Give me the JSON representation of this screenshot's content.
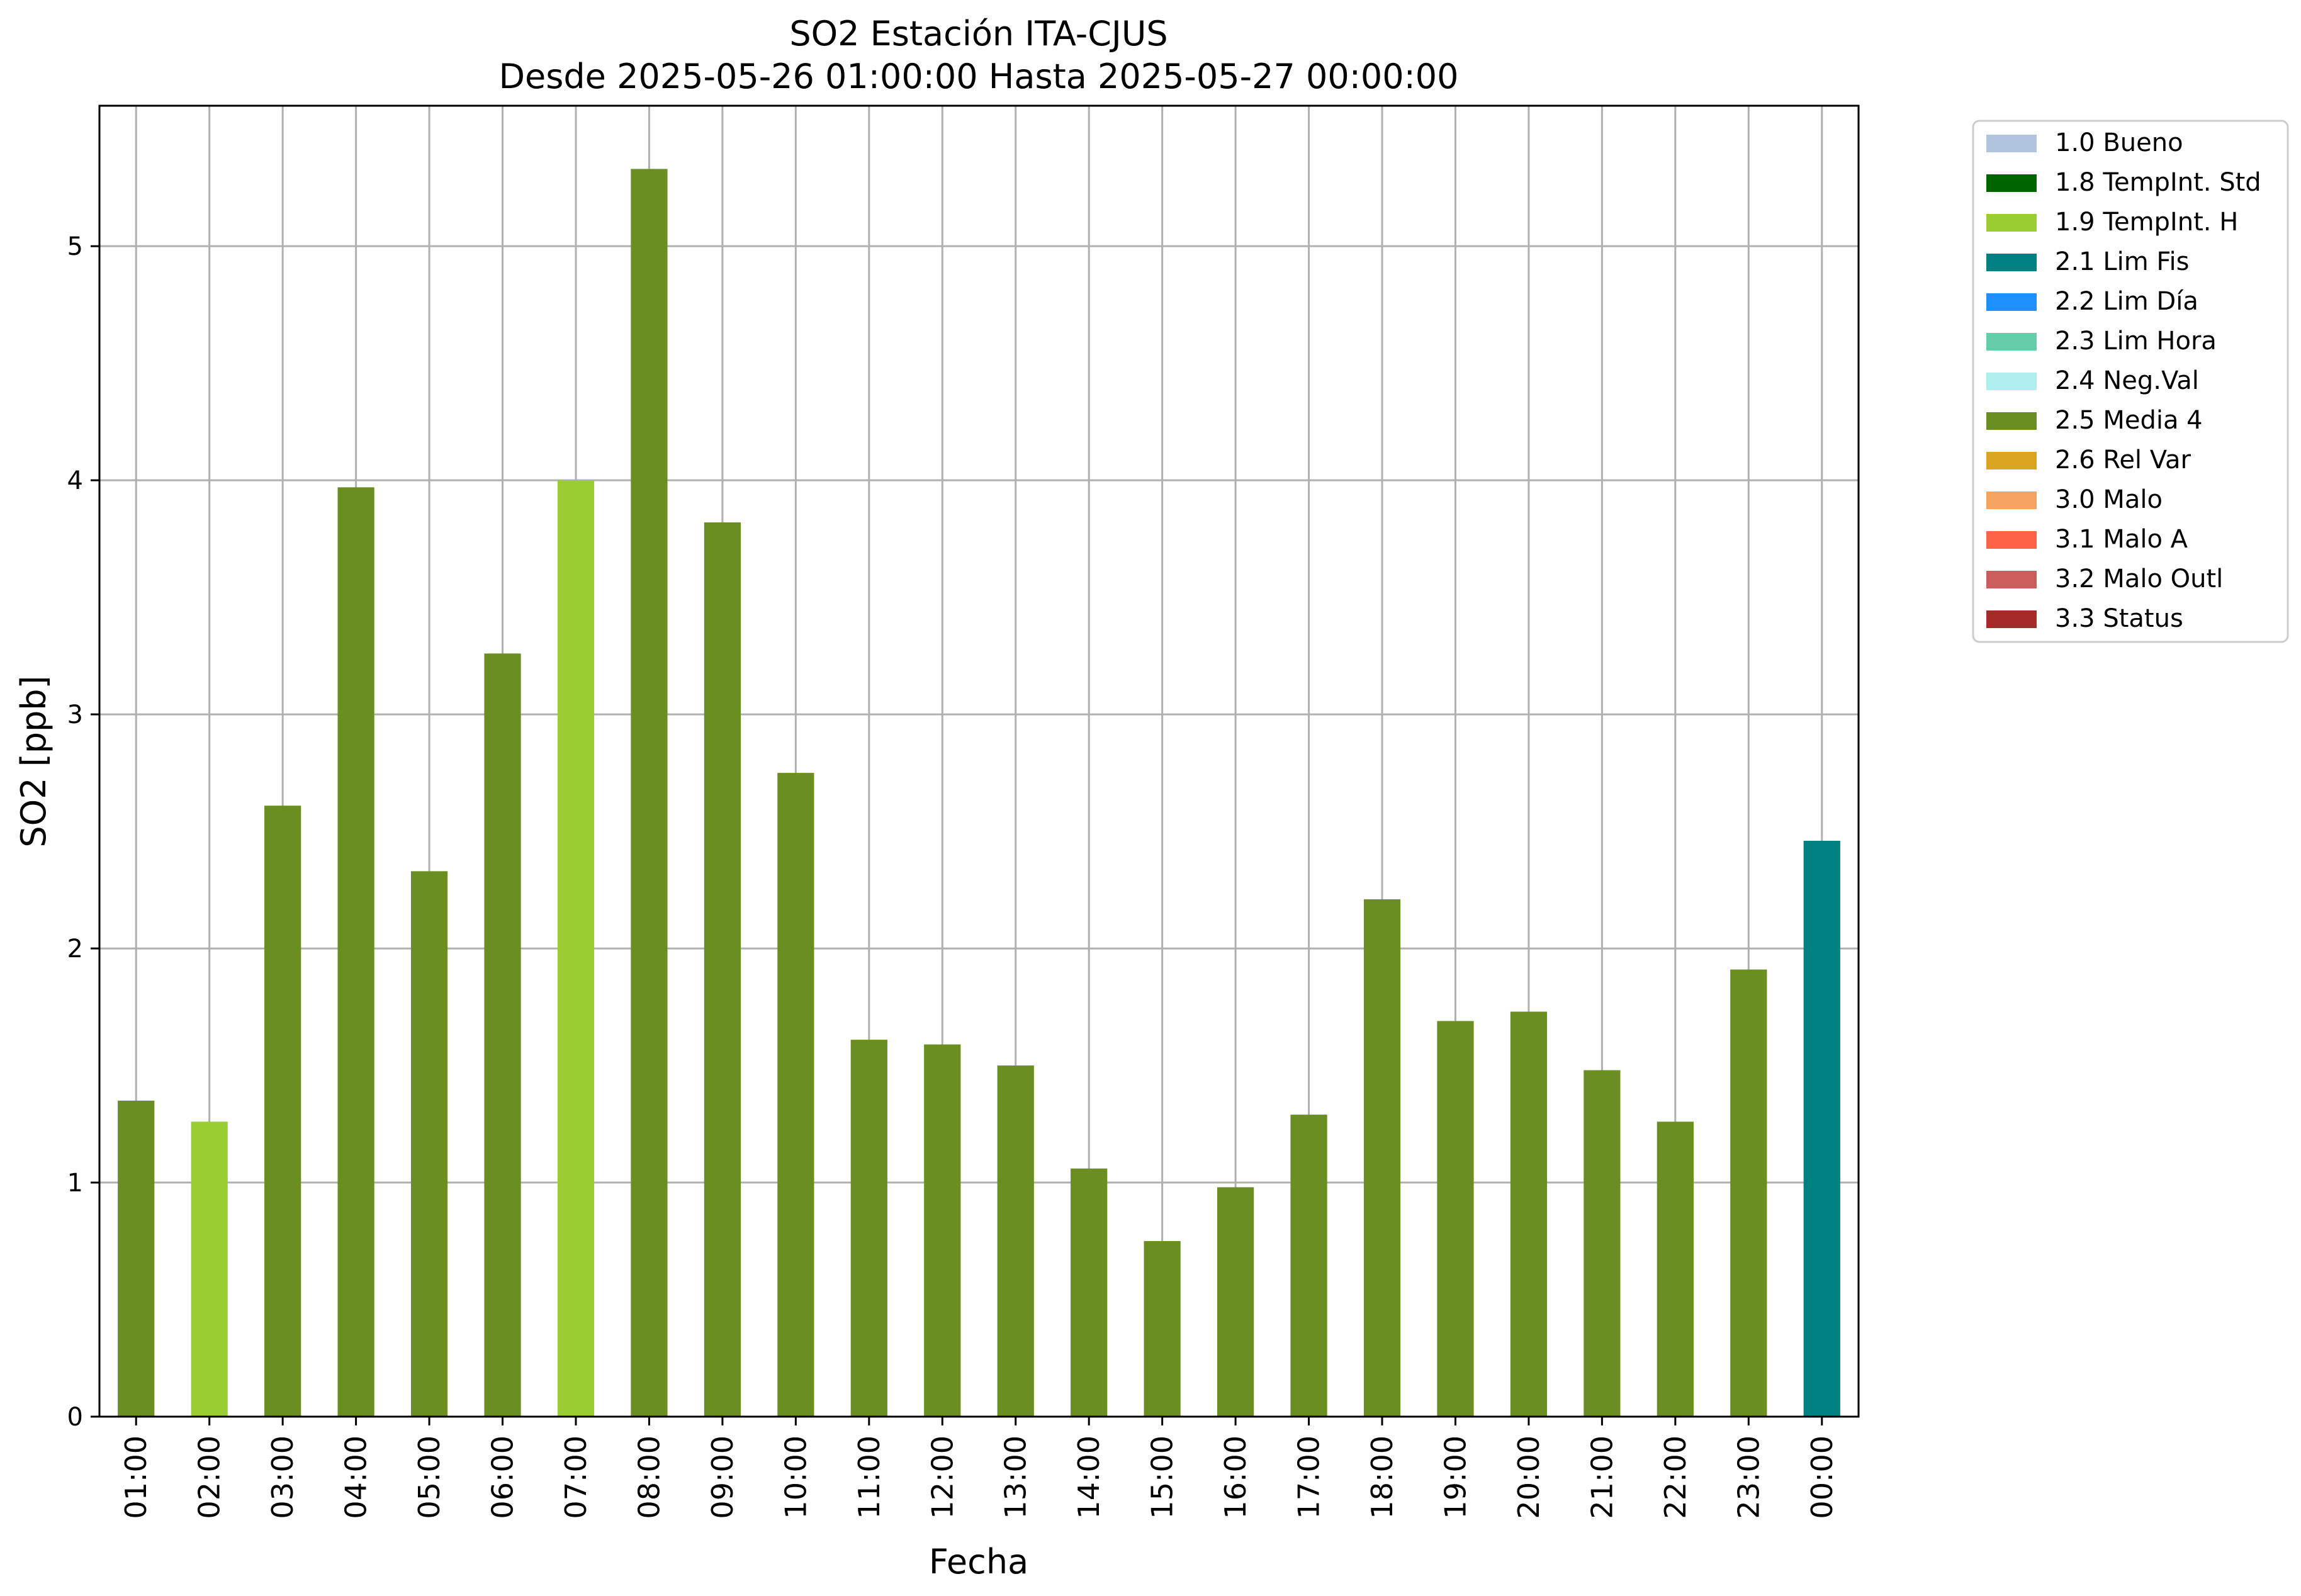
{
  "chart_data": {
    "type": "bar",
    "title": "SO2 Estación ITA-CJUS",
    "subtitle": "Desde 2025-05-26 01:00:00 Hasta 2025-05-27 00:00:00",
    "xlabel": "Fecha",
    "ylabel": "SO2 [ppb]",
    "ylim": [
      0,
      5.6
    ],
    "yticks": [
      0,
      1,
      2,
      3,
      4,
      5
    ],
    "grid": true,
    "legend_position": "outside-top-right",
    "categories": [
      "01:00",
      "02:00",
      "03:00",
      "04:00",
      "05:00",
      "06:00",
      "07:00",
      "08:00",
      "09:00",
      "10:00",
      "11:00",
      "12:00",
      "13:00",
      "14:00",
      "15:00",
      "16:00",
      "17:00",
      "18:00",
      "19:00",
      "20:00",
      "21:00",
      "22:00",
      "23:00",
      "00:00"
    ],
    "values": [
      1.35,
      1.26,
      2.61,
      3.97,
      2.33,
      3.26,
      4.0,
      5.33,
      3.82,
      2.75,
      1.61,
      1.59,
      1.5,
      1.06,
      0.75,
      0.98,
      1.29,
      2.21,
      1.69,
      1.73,
      1.48,
      1.26,
      1.91,
      2.46
    ],
    "flags": [
      "2.5 Media 4",
      "1.9 TempInt. H",
      "2.5 Media 4",
      "2.5 Media 4",
      "2.5 Media 4",
      "2.5 Media 4",
      "1.9 TempInt. H",
      "2.5 Media 4",
      "2.5 Media 4",
      "2.5 Media 4",
      "2.5 Media 4",
      "2.5 Media 4",
      "2.5 Media 4",
      "2.5 Media 4",
      "2.5 Media 4",
      "2.5 Media 4",
      "2.5 Media 4",
      "2.5 Media 4",
      "2.5 Media 4",
      "2.5 Media 4",
      "2.5 Media 4",
      "2.5 Media 4",
      "2.5 Media 4",
      "2.1 Lim Fis"
    ],
    "legend": [
      {
        "label": "1.0 Bueno",
        "color": "#b0c4de"
      },
      {
        "label": "1.8 TempInt. Std",
        "color": "#006400"
      },
      {
        "label": "1.9 TempInt. H",
        "color": "#9acd32"
      },
      {
        "label": "2.1 Lim Fis",
        "color": "#008080"
      },
      {
        "label": "2.2 Lim Día",
        "color": "#1e90ff"
      },
      {
        "label": "2.3 Lim Hora",
        "color": "#66cdaa"
      },
      {
        "label": "2.4 Neg.Val",
        "color": "#afeeee"
      },
      {
        "label": "2.5 Media 4",
        "color": "#6b8e23"
      },
      {
        "label": "2.6 Rel Var",
        "color": "#daa520"
      },
      {
        "label": "3.0 Malo",
        "color": "#f4a460"
      },
      {
        "label": "3.1 Malo A",
        "color": "#ff6347"
      },
      {
        "label": "3.2 Malo Outl",
        "color": "#cd5c5c"
      },
      {
        "label": "3.3 Status",
        "color": "#a52a2a"
      }
    ]
  }
}
